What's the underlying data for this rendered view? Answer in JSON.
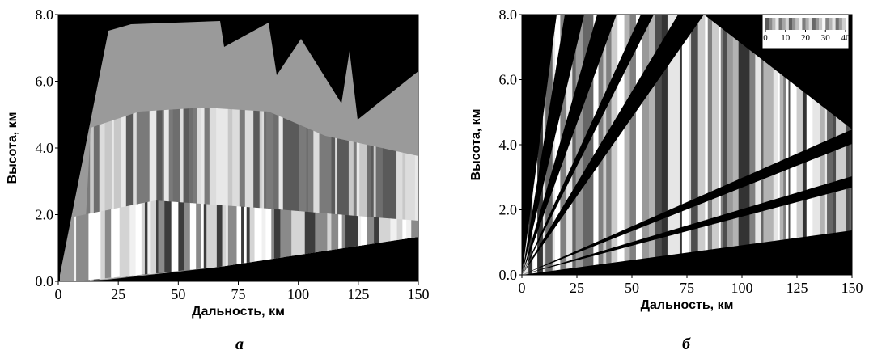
{
  "chart_data": [
    {
      "type": "image",
      "xlabel": "Дальность, км",
      "ylabel": "Высота, км",
      "caption": "а",
      "xlim": [
        0,
        150
      ],
      "ylim": [
        0,
        8
      ],
      "xticks": [
        0,
        25,
        50,
        75,
        100,
        125,
        150
      ],
      "yticks": [
        {
          "value": 0,
          "label": "0.0"
        },
        {
          "value": 2,
          "label": "2.0"
        },
        {
          "value": 4,
          "label": "4.0"
        },
        {
          "value": 6,
          "label": "6.0"
        },
        {
          "value": 8,
          "label": "8.0"
        }
      ]
    },
    {
      "type": "image",
      "xlabel": "Дальность, км",
      "ylabel": "Высота, км",
      "caption": "б",
      "xlim": [
        0,
        150
      ],
      "ylim": [
        0,
        8
      ],
      "xticks": [
        0,
        25,
        50,
        75,
        100,
        125,
        150
      ],
      "yticks": [
        {
          "value": 0,
          "label": "0.0"
        },
        {
          "value": 2,
          "label": "2.0"
        },
        {
          "value": 4,
          "label": "4.0"
        },
        {
          "value": 6,
          "label": "6.0"
        },
        {
          "value": 8,
          "label": "8.0"
        }
      ],
      "colorbar": {
        "lim": [
          0,
          40
        ],
        "ticks": [
          0,
          10,
          20,
          30,
          40
        ]
      }
    }
  ]
}
